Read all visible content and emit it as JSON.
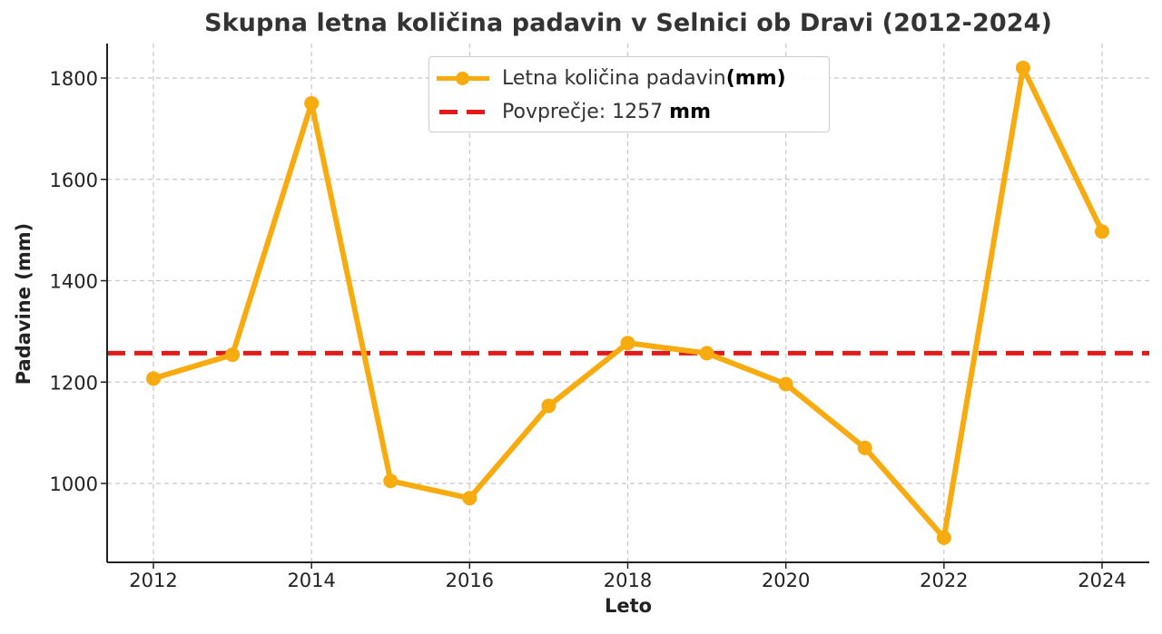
{
  "chart_data": {
    "type": "line",
    "title": "Skupna letna količina padavin v Selnici ob Dravi (2012-2024)",
    "xlabel": "Leto",
    "ylabel": "Padavine (mm)",
    "x": [
      2012,
      2013,
      2014,
      2015,
      2016,
      2017,
      2018,
      2019,
      2020,
      2021,
      2022,
      2023,
      2024
    ],
    "series": [
      {
        "name": "Letna količina padavin (mm)",
        "color": "#f7ab0f",
        "marker": "circle",
        "values": [
          1207,
          1254,
          1750,
          1005,
          971,
          1153,
          1277,
          1257,
          1196,
          1070,
          893,
          1820,
          1497
        ]
      }
    ],
    "reference_lines": [
      {
        "name": "Povprečje: 1257 mm",
        "value": 1257,
        "color": "#e31a1a",
        "style": "dashed"
      }
    ],
    "xticks": [
      2012,
      2014,
      2016,
      2018,
      2020,
      2022,
      2024
    ],
    "yticks": [
      1000,
      1200,
      1400,
      1600,
      1800
    ],
    "xlim": [
      2011.42,
      2024.6
    ],
    "ylim": [
      848,
      1870
    ],
    "grid": true,
    "legend_position": "upper center"
  },
  "legend": {
    "series_label": "Letna količina padavin",
    "series_unit": "(mm)",
    "avg_label": "Povprečje: 1257",
    "avg_unit": "mm"
  },
  "colors": {
    "line": "#f7ab0f",
    "average": "#e31a1a",
    "grid": "#c8c8c8",
    "axis": "#222222"
  }
}
